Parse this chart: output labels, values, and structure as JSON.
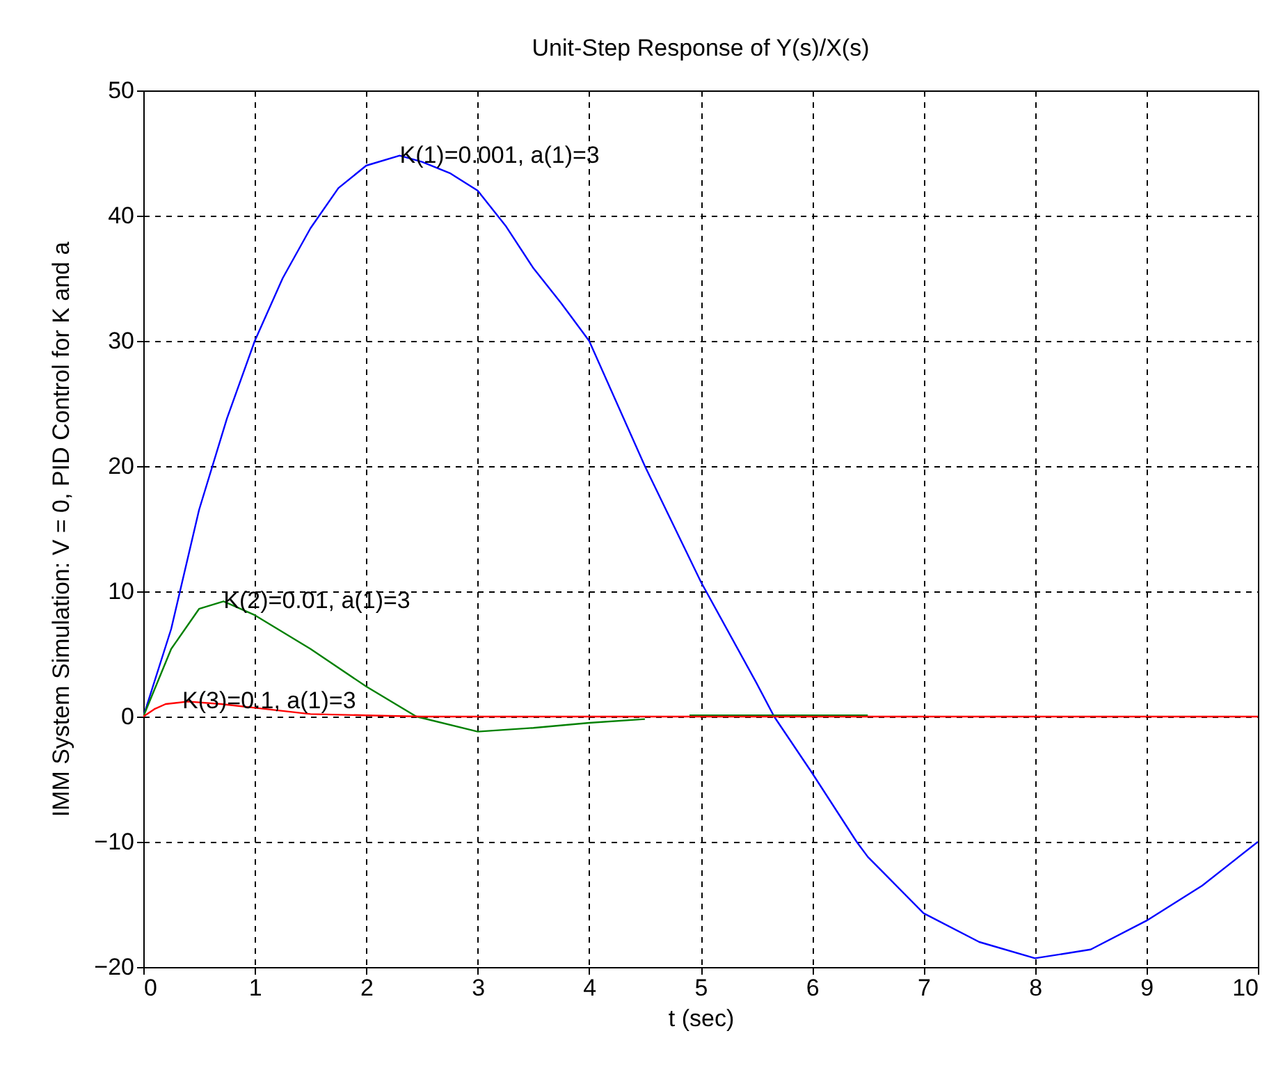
{
  "chart_data": {
    "type": "line",
    "title": "Unit-Step Response of Y(s)/X(s)",
    "xlabel": "t (sec)",
    "ylabel": "IMM System Simulation: V = 0, PID Control for K and a",
    "xlim": [
      0,
      10
    ],
    "xticks": [
      0,
      1,
      2,
      3,
      4,
      5,
      6,
      7,
      8,
      9,
      10
    ],
    "ylim": [
      -20,
      50
    ],
    "yticks": [
      -20,
      -10,
      0,
      10,
      20,
      30,
      40,
      50
    ],
    "grid": true,
    "series": [
      {
        "color": "#0000ff",
        "x": [
          0,
          0.25,
          0.5,
          0.75,
          1,
          1.25,
          1.5,
          1.75,
          2,
          2.3,
          2.5,
          2.75,
          3,
          3.25,
          3.5,
          3.75,
          4,
          4.5,
          5,
          5.5,
          5.66,
          6,
          6.4,
          6.5,
          7,
          7.5,
          8,
          8.5,
          9,
          9.5,
          10
        ],
        "values": [
          0,
          7,
          16.5,
          23.8,
          30,
          35,
          39,
          42.2,
          44,
          44.8,
          44.3,
          43.4,
          42,
          39.2,
          35.8,
          33,
          30,
          20,
          10.8,
          2.7,
          0,
          -4.5,
          -10,
          -11.2,
          -15.7,
          -18,
          -19.3,
          -18.6,
          -16.3,
          -13.5,
          -10
        ]
      },
      {
        "color": "#008000",
        "x": [
          0,
          0.25,
          0.5,
          0.72,
          1,
          1.5,
          2,
          2.45,
          3,
          3.5,
          4,
          4.5,
          4.7,
          4.9,
          6.5
        ],
        "values": [
          0,
          5.4,
          8.6,
          9.2,
          8.1,
          5.4,
          2.4,
          0,
          -1.2,
          -0.9,
          -0.5,
          -0.2,
          null,
          0.1,
          0.1
        ]
      },
      {
        "color": "#ff0000",
        "x": [
          0,
          0.1,
          0.2,
          0.4,
          0.7,
          1,
          1.5,
          2,
          2.5,
          10
        ],
        "values": [
          0,
          0.6,
          1,
          1.2,
          1,
          0.7,
          0.2,
          0.1,
          0,
          0
        ]
      }
    ],
    "annotations": [
      {
        "text": "K(1)=0.001, a(1)=3",
        "x": 2.3,
        "y": 44.8
      },
      {
        "text": "K(2)=0.01, a(1)=3",
        "x": 0.72,
        "y": 9.2
      },
      {
        "text": "K(3)=0.1, a(1)=3",
        "x": 0.35,
        "y": 1.2
      }
    ]
  }
}
